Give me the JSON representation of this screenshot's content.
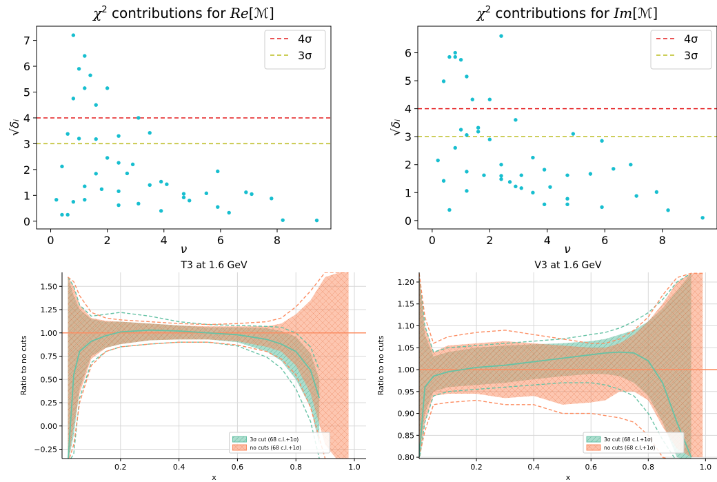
{
  "chart_data": [
    {
      "type": "scatter",
      "title": "χ² contributions for Re[ℳ]",
      "title_parts": {
        "main": "χ",
        "sup": "2",
        "mid": " contributions for ",
        "it": "Re",
        "rest": "[ℳ]"
      },
      "xlabel": "ν",
      "ylabel": "√δᵢ",
      "xlim": [
        -0.5,
        9.9
      ],
      "ylim": [
        -0.3,
        7.55
      ],
      "xticks": [
        "0",
        "2",
        "4",
        "6",
        "8"
      ],
      "yticks": [
        "0",
        "1",
        "2",
        "3",
        "4",
        "5",
        "6",
        "7"
      ],
      "grid": false,
      "legend": {
        "placement": "top-right",
        "entries": [
          {
            "label": "4σ",
            "color": "#e41a1c"
          },
          {
            "label": "3σ",
            "color": "#bcbd22"
          }
        ]
      },
      "hlines": [
        {
          "y": 4,
          "color": "#e41a1c"
        },
        {
          "y": 3,
          "color": "#bcbd22"
        }
      ],
      "point_color": "#17becf",
      "points": [
        [
          0.8,
          7.2
        ],
        [
          1.2,
          6.4
        ],
        [
          1.0,
          5.9
        ],
        [
          1.4,
          5.65
        ],
        [
          1.2,
          5.15
        ],
        [
          2.0,
          5.15
        ],
        [
          0.8,
          4.75
        ],
        [
          1.6,
          4.5
        ],
        [
          3.1,
          4.0
        ],
        [
          0.6,
          3.38
        ],
        [
          3.5,
          3.42
        ],
        [
          1.0,
          3.2
        ],
        [
          1.6,
          3.18
        ],
        [
          2.4,
          3.3
        ],
        [
          2.0,
          2.45
        ],
        [
          0.4,
          2.12
        ],
        [
          2.4,
          2.26
        ],
        [
          2.9,
          2.2
        ],
        [
          5.9,
          1.93
        ],
        [
          1.6,
          1.84
        ],
        [
          2.7,
          1.85
        ],
        [
          3.9,
          1.53
        ],
        [
          4.1,
          1.43
        ],
        [
          1.2,
          1.35
        ],
        [
          3.5,
          1.4
        ],
        [
          1.8,
          1.24
        ],
        [
          2.4,
          1.16
        ],
        [
          4.7,
          1.06
        ],
        [
          5.5,
          1.08
        ],
        [
          6.9,
          1.12
        ],
        [
          7.1,
          1.05
        ],
        [
          4.7,
          0.92
        ],
        [
          4.9,
          0.8
        ],
        [
          0.2,
          0.83
        ],
        [
          1.2,
          0.83
        ],
        [
          0.8,
          0.75
        ],
        [
          2.4,
          0.62
        ],
        [
          3.1,
          0.68
        ],
        [
          5.9,
          0.55
        ],
        [
          7.8,
          0.88
        ],
        [
          3.9,
          0.4
        ],
        [
          6.3,
          0.33
        ],
        [
          0.4,
          0.25
        ],
        [
          0.6,
          0.25
        ],
        [
          8.2,
          0.04
        ],
        [
          9.4,
          0.03
        ]
      ]
    },
    {
      "type": "scatter",
      "title": "χ² contributions for Im[ℳ]",
      "title_parts": {
        "main": "χ",
        "sup": "2",
        "mid": " contributions for ",
        "it": "Im",
        "rest": "[ℳ]"
      },
      "xlabel": "ν",
      "ylabel": "√δᵢ",
      "xlim": [
        -0.5,
        9.9
      ],
      "ylim": [
        -0.3,
        6.95
      ],
      "xticks": [
        "0",
        "2",
        "4",
        "6",
        "8"
      ],
      "yticks": [
        "0",
        "1",
        "2",
        "3",
        "4",
        "5",
        "6"
      ],
      "grid": false,
      "legend": {
        "placement": "top-right",
        "entries": [
          {
            "label": "4σ",
            "color": "#e41a1c"
          },
          {
            "label": "3σ",
            "color": "#bcbd22"
          }
        ]
      },
      "hlines": [
        {
          "y": 4,
          "color": "#e41a1c"
        },
        {
          "y": 3,
          "color": "#bcbd22"
        }
      ],
      "point_color": "#17becf",
      "points": [
        [
          2.4,
          6.6
        ],
        [
          0.8,
          6.0
        ],
        [
          0.6,
          5.85
        ],
        [
          0.8,
          5.85
        ],
        [
          1.0,
          5.75
        ],
        [
          1.2,
          5.15
        ],
        [
          0.4,
          4.98
        ],
        [
          1.4,
          4.33
        ],
        [
          2.0,
          4.33
        ],
        [
          2.9,
          3.6
        ],
        [
          1.6,
          3.32
        ],
        [
          1.0,
          3.25
        ],
        [
          1.6,
          3.18
        ],
        [
          4.9,
          3.1
        ],
        [
          1.2,
          3.06
        ],
        [
          2.0,
          2.9
        ],
        [
          5.9,
          2.85
        ],
        [
          0.8,
          2.6
        ],
        [
          3.5,
          2.25
        ],
        [
          0.2,
          2.15
        ],
        [
          2.4,
          2.0
        ],
        [
          6.9,
          2.0
        ],
        [
          3.9,
          1.82
        ],
        [
          6.3,
          1.85
        ],
        [
          1.2,
          1.75
        ],
        [
          5.5,
          1.67
        ],
        [
          1.8,
          1.62
        ],
        [
          2.4,
          1.6
        ],
        [
          3.1,
          1.62
        ],
        [
          4.7,
          1.62
        ],
        [
          2.4,
          1.48
        ],
        [
          0.4,
          1.42
        ],
        [
          2.7,
          1.38
        ],
        [
          2.9,
          1.22
        ],
        [
          4.1,
          1.2
        ],
        [
          3.1,
          1.16
        ],
        [
          1.2,
          1.06
        ],
        [
          3.5,
          1.0
        ],
        [
          7.8,
          1.02
        ],
        [
          7.1,
          0.88
        ],
        [
          4.7,
          0.78
        ],
        [
          3.9,
          0.58
        ],
        [
          4.7,
          0.58
        ],
        [
          5.9,
          0.48
        ],
        [
          0.6,
          0.38
        ],
        [
          8.2,
          0.37
        ],
        [
          9.4,
          0.1
        ]
      ]
    },
    {
      "type": "area",
      "title": "T3 at 1.6 GeV",
      "xlabel": "x",
      "ylabel": "Ratio to no cuts",
      "xlim": [
        0.0,
        1.04
      ],
      "ylim": [
        -0.35,
        1.65
      ],
      "xticks": [
        "0.2",
        "0.4",
        "0.6",
        "0.8",
        "1.0"
      ],
      "yticks": [
        "−0.25",
        "0.00",
        "0.25",
        "0.50",
        "0.75",
        "1.00",
        "1.25",
        "1.50"
      ],
      "grid": true,
      "legend": {
        "placement": "lower-right",
        "entries": [
          {
            "label": "3σ cut (68 c.l.+1σ)",
            "color": "#66c2a5"
          },
          {
            "label": "no cuts (68 c.l.+1σ)",
            "color": "#fc8d62"
          }
        ]
      },
      "reference_line": 1.0,
      "series": [
        {
          "name": "3σ cut (68 c.l.+1σ)",
          "color": "#66c2a5",
          "x": [
            0.02,
            0.04,
            0.06,
            0.1,
            0.15,
            0.2,
            0.3,
            0.4,
            0.5,
            0.6,
            0.7,
            0.75,
            0.8,
            0.85,
            0.88
          ],
          "upper": [
            1.6,
            1.4,
            1.25,
            1.15,
            1.12,
            1.12,
            1.1,
            1.08,
            1.06,
            1.06,
            1.05,
            1.02,
            0.96,
            0.78,
            0.5
          ],
          "center": [
            -0.4,
            0.55,
            0.8,
            0.91,
            0.97,
            1.01,
            1.03,
            1.02,
            1.0,
            0.98,
            0.93,
            0.88,
            0.8,
            0.6,
            0.3
          ],
          "lower": [
            -0.4,
            -0.1,
            0.4,
            0.75,
            0.84,
            0.88,
            0.92,
            0.93,
            0.93,
            0.9,
            0.8,
            0.7,
            0.5,
            0.2,
            -0.2
          ],
          "outer_upper": [
            1.6,
            1.5,
            1.3,
            1.18,
            1.2,
            1.22,
            1.18,
            1.12,
            1.09,
            1.08,
            1.07,
            1.06,
            1.0,
            0.85,
            0.6
          ],
          "outer_lower": [
            -0.4,
            -0.3,
            0.3,
            0.68,
            0.8,
            0.85,
            0.88,
            0.9,
            0.9,
            0.86,
            0.74,
            0.62,
            0.4,
            0.05,
            -0.35
          ]
        },
        {
          "name": "no cuts (68 c.l.+1σ)",
          "color": "#fc8d62",
          "x": [
            0.02,
            0.04,
            0.06,
            0.1,
            0.15,
            0.2,
            0.3,
            0.4,
            0.5,
            0.6,
            0.7,
            0.75,
            0.8,
            0.85,
            0.9,
            0.95,
            0.98
          ],
          "upper": [
            1.6,
            1.5,
            1.3,
            1.16,
            1.13,
            1.12,
            1.1,
            1.08,
            1.07,
            1.07,
            1.07,
            1.1,
            1.2,
            1.35,
            1.6,
            1.65,
            1.65
          ],
          "center": [
            1.0,
            1.0,
            1.0,
            1.0,
            1.0,
            1.0,
            1.0,
            1.0,
            1.0,
            1.0,
            1.0,
            1.0,
            1.0,
            1.0,
            1.0,
            1.0,
            1.0
          ],
          "lower": [
            -0.4,
            0.0,
            0.35,
            0.72,
            0.84,
            0.88,
            0.92,
            0.93,
            0.93,
            0.91,
            0.85,
            0.8,
            0.65,
            0.35,
            -0.2,
            -0.4,
            -0.4
          ],
          "outer_upper": [
            1.6,
            1.55,
            1.4,
            1.22,
            1.16,
            1.14,
            1.12,
            1.1,
            1.09,
            1.1,
            1.12,
            1.16,
            1.28,
            1.45,
            1.65,
            1.65,
            1.65
          ],
          "outer_lower": [
            -0.4,
            -0.2,
            0.25,
            0.65,
            0.8,
            0.85,
            0.88,
            0.9,
            0.9,
            0.87,
            0.8,
            0.72,
            0.55,
            0.2,
            -0.35,
            -0.4,
            -0.4
          ]
        }
      ]
    },
    {
      "type": "area",
      "title": "V3 at 1.6 GeV",
      "xlabel": "x",
      "ylabel": "Ratio to no cuts",
      "xlim": [
        0.0,
        1.04
      ],
      "ylim": [
        0.797,
        1.222
      ],
      "xticks": [
        "0.2",
        "0.4",
        "0.6",
        "0.8",
        "1.0"
      ],
      "yticks": [
        "0.80",
        "0.85",
        "0.90",
        "0.95",
        "1.00",
        "1.05",
        "1.10",
        "1.15",
        "1.20"
      ],
      "grid": true,
      "legend": {
        "placement": "lower-right",
        "entries": [
          {
            "label": "3σ cut (68 c.l.+1σ)",
            "color": "#66c2a5"
          },
          {
            "label": "no cuts (68 c.l.+1σ)",
            "color": "#fc8d62"
          }
        ]
      },
      "reference_line": 1.0,
      "series": [
        {
          "name": "3σ cut (68 c.l.+1σ)",
          "color": "#66c2a5",
          "x": [
            0.0,
            0.02,
            0.05,
            0.1,
            0.2,
            0.3,
            0.4,
            0.5,
            0.6,
            0.65,
            0.7,
            0.75,
            0.8,
            0.85,
            0.9,
            0.95
          ],
          "upper": [
            1.22,
            1.08,
            1.03,
            1.04,
            1.05,
            1.055,
            1.058,
            1.06,
            1.065,
            1.07,
            1.08,
            1.09,
            1.11,
            1.14,
            1.18,
            1.22
          ],
          "center": [
            0.8,
            0.96,
            0.985,
            0.995,
            1.005,
            1.01,
            1.018,
            1.026,
            1.034,
            1.038,
            1.04,
            1.038,
            1.02,
            0.97,
            0.88,
            0.8
          ],
          "lower": [
            0.8,
            0.9,
            0.95,
            0.96,
            0.965,
            0.97,
            0.978,
            0.985,
            0.99,
            0.99,
            0.985,
            0.97,
            0.94,
            0.88,
            0.8,
            0.79
          ],
          "outer_upper": [
            1.22,
            1.1,
            1.04,
            1.05,
            1.055,
            1.06,
            1.065,
            1.07,
            1.08,
            1.085,
            1.095,
            1.11,
            1.13,
            1.16,
            1.2,
            1.22
          ],
          "outer_lower": [
            0.79,
            0.88,
            0.94,
            0.95,
            0.955,
            0.96,
            0.965,
            0.97,
            0.97,
            0.965,
            0.955,
            0.94,
            0.9,
            0.84,
            0.79,
            0.79
          ]
        },
        {
          "name": "no cuts (68 c.l.+1σ)",
          "color": "#fc8d62",
          "x": [
            0.0,
            0.02,
            0.05,
            0.1,
            0.2,
            0.3,
            0.4,
            0.5,
            0.6,
            0.65,
            0.7,
            0.75,
            0.8,
            0.85,
            0.9,
            0.95,
            0.99
          ],
          "upper": [
            1.22,
            1.1,
            1.04,
            1.055,
            1.06,
            1.065,
            1.06,
            1.055,
            1.05,
            1.05,
            1.06,
            1.08,
            1.11,
            1.15,
            1.2,
            1.22,
            1.22
          ],
          "center": [
            1.0,
            1.0,
            1.0,
            1.0,
            1.0,
            1.0,
            1.0,
            1.0,
            1.0,
            1.0,
            1.0,
            1.0,
            1.0,
            1.0,
            1.0,
            1.0,
            1.0
          ],
          "lower": [
            0.8,
            0.88,
            0.94,
            0.945,
            0.945,
            0.935,
            0.94,
            0.92,
            0.925,
            0.93,
            0.95,
            0.95,
            0.93,
            0.87,
            0.82,
            0.8,
            0.8
          ],
          "outer_upper": [
            1.22,
            1.12,
            1.06,
            1.075,
            1.085,
            1.09,
            1.08,
            1.07,
            1.06,
            1.06,
            1.07,
            1.09,
            1.12,
            1.17,
            1.21,
            1.22,
            1.22
          ],
          "outer_lower": [
            0.8,
            0.86,
            0.92,
            0.925,
            0.93,
            0.92,
            0.92,
            0.9,
            0.9,
            0.895,
            0.89,
            0.88,
            0.85,
            0.8,
            0.79,
            0.79,
            0.79
          ]
        }
      ]
    }
  ]
}
